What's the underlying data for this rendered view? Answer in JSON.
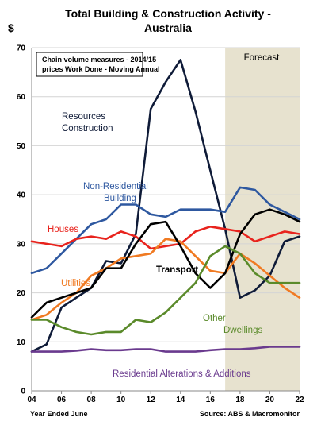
{
  "chart_data": {
    "type": "line",
    "title": [
      "Total Building & Construction Activity -",
      "Australia"
    ],
    "ylabel": "$",
    "xlabel": "Year Ended June",
    "source": "Source: ABS & Macromonitor",
    "note": [
      "Chain volume measures - 2014/15",
      "prices Work Done - Moving Annual"
    ],
    "forecast_label": "Forecast",
    "forecast_start": 17,
    "xlim": [
      4,
      22
    ],
    "ylim": [
      0,
      70
    ],
    "xticks": [
      4,
      6,
      8,
      10,
      12,
      14,
      16,
      18,
      20,
      22
    ],
    "xtick_labels": [
      "04",
      "06",
      "08",
      "10",
      "12",
      "14",
      "16",
      "18",
      "20",
      "22"
    ],
    "yticks": [
      0,
      10,
      20,
      30,
      40,
      50,
      60,
      70
    ],
    "x": [
      4,
      5,
      6,
      7,
      8,
      9,
      10,
      11,
      12,
      13,
      14,
      15,
      16,
      17,
      18,
      19,
      20,
      21,
      22
    ],
    "series": [
      {
        "name": "Resources Construction",
        "label_lines": [
          "Resources",
          "Construction"
        ],
        "color": "#0f1b38",
        "values": [
          8,
          9.5,
          17,
          19,
          21,
          26.5,
          26,
          32,
          57.5,
          63,
          67.5,
          57,
          45,
          33,
          19,
          20.5,
          23.5,
          30.5,
          31.5
        ]
      },
      {
        "name": "Non-Residential Building",
        "label_lines": [
          "Non-Residential",
          "Building"
        ],
        "color": "#2e58a0",
        "values": [
          24,
          25,
          28,
          31,
          34,
          35,
          38,
          38,
          36,
          35.5,
          37,
          37,
          37,
          36.5,
          41.5,
          41,
          38,
          36.5,
          35
        ]
      },
      {
        "name": "Houses",
        "label_lines": [
          "Houses"
        ],
        "color": "#e8231d",
        "values": [
          30.5,
          30,
          29.5,
          31,
          31.5,
          31,
          32.5,
          31.5,
          29,
          29.5,
          30,
          32.5,
          33.5,
          33,
          32.5,
          30.5,
          31.5,
          32.5,
          32
        ]
      },
      {
        "name": "Utilities",
        "label_lines": [
          "Utilities"
        ],
        "color": "#f07a22",
        "values": [
          14.5,
          15.5,
          18,
          20,
          23.5,
          25,
          27,
          27.5,
          28,
          31,
          30.5,
          27.5,
          24.5,
          24,
          28,
          26,
          23.5,
          21,
          19
        ]
      },
      {
        "name": "Transport",
        "label_lines": [
          "Transport"
        ],
        "color": "#000000",
        "values": [
          15,
          18,
          19,
          20,
          21,
          25,
          25,
          30,
          34,
          34.5,
          29.5,
          24,
          21,
          24,
          32,
          36,
          37,
          36,
          34.5
        ]
      },
      {
        "name": "Other Dwellings",
        "label_lines": [
          "Other",
          "Dwellings"
        ],
        "color": "#5a8a2a",
        "values": [
          14.5,
          14.5,
          13,
          12,
          11.5,
          12,
          12,
          14.5,
          14,
          16,
          19,
          22,
          27.5,
          29.5,
          28,
          24,
          22,
          22,
          22
        ]
      },
      {
        "name": "Residential Alterations & Additions",
        "label_lines": [
          "Residential Alterations & Additions"
        ],
        "color": "#6a3a8e",
        "values": [
          8,
          8,
          8,
          8.2,
          8.5,
          8.3,
          8.3,
          8.5,
          8.5,
          8,
          8,
          8,
          8.3,
          8.5,
          8.5,
          8.7,
          9,
          9,
          9
        ]
      }
    ]
  }
}
